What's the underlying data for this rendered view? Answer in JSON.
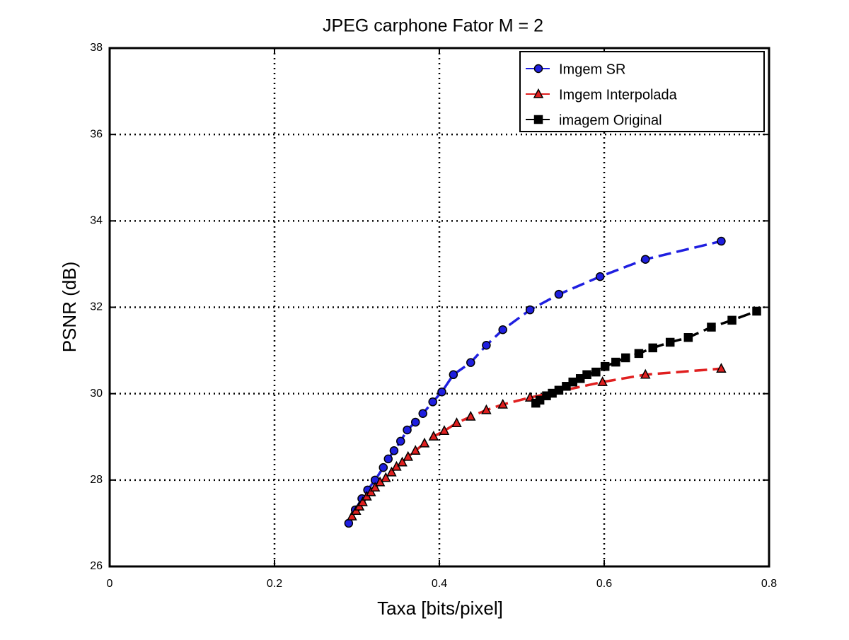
{
  "chart_data": {
    "type": "line",
    "title": "JPEG carphone Fator M = 2",
    "x_label": "Taxa [bits/pixel]",
    "y_label": "PSNR (dB)",
    "xlim": [
      0,
      0.8
    ],
    "ylim": [
      26,
      38
    ],
    "xticks": [
      0,
      0.2,
      0.4,
      0.6,
      0.8
    ],
    "yticks": [
      26,
      28,
      30,
      32,
      34,
      36,
      38
    ],
    "grid": true,
    "legend": "upper right",
    "series": [
      {
        "name": "Imgem SR",
        "color": "#1f1fe0",
        "marker": "circle",
        "x": [
          0.29,
          0.298,
          0.306,
          0.313,
          0.322,
          0.332,
          0.338,
          0.345,
          0.353,
          0.361,
          0.371,
          0.38,
          0.392,
          0.403,
          0.417,
          0.438,
          0.457,
          0.477,
          0.51,
          0.545,
          0.595,
          0.65,
          0.742
        ],
        "values": [
          27.0,
          27.31,
          27.57,
          27.77,
          28.0,
          28.29,
          28.49,
          28.68,
          28.9,
          29.16,
          29.34,
          29.54,
          29.81,
          30.04,
          30.44,
          30.72,
          31.12,
          31.48,
          31.94,
          32.3,
          32.71,
          33.11,
          33.53
        ]
      },
      {
        "name": "Imgem Interpolada",
        "color": "#e01f1f",
        "marker": "triangle",
        "x": [
          0.294,
          0.299,
          0.303,
          0.307,
          0.312,
          0.317,
          0.322,
          0.328,
          0.335,
          0.342,
          0.348,
          0.355,
          0.362,
          0.371,
          0.382,
          0.393,
          0.406,
          0.421,
          0.438,
          0.457,
          0.477,
          0.51,
          0.598,
          0.65,
          0.742
        ],
        "values": [
          27.16,
          27.29,
          27.39,
          27.49,
          27.62,
          27.72,
          27.83,
          27.95,
          28.05,
          28.18,
          28.31,
          28.41,
          28.54,
          28.68,
          28.85,
          29.01,
          29.14,
          29.32,
          29.47,
          29.62,
          29.75,
          29.91,
          30.27,
          30.44,
          30.58
        ]
      },
      {
        "name": "imagem Original",
        "color": "#000000",
        "marker": "square",
        "x": [
          0.517,
          0.522,
          0.53,
          0.537,
          0.545,
          0.554,
          0.562,
          0.571,
          0.579,
          0.59,
          0.601,
          0.614,
          0.626,
          0.642,
          0.659,
          0.68,
          0.702,
          0.73,
          0.755,
          0.785
        ],
        "values": [
          29.78,
          29.85,
          29.95,
          30.01,
          30.08,
          30.17,
          30.27,
          30.35,
          30.44,
          30.5,
          30.63,
          30.73,
          30.83,
          30.93,
          31.06,
          31.19,
          31.3,
          31.54,
          31.7,
          31.91
        ]
      }
    ]
  }
}
